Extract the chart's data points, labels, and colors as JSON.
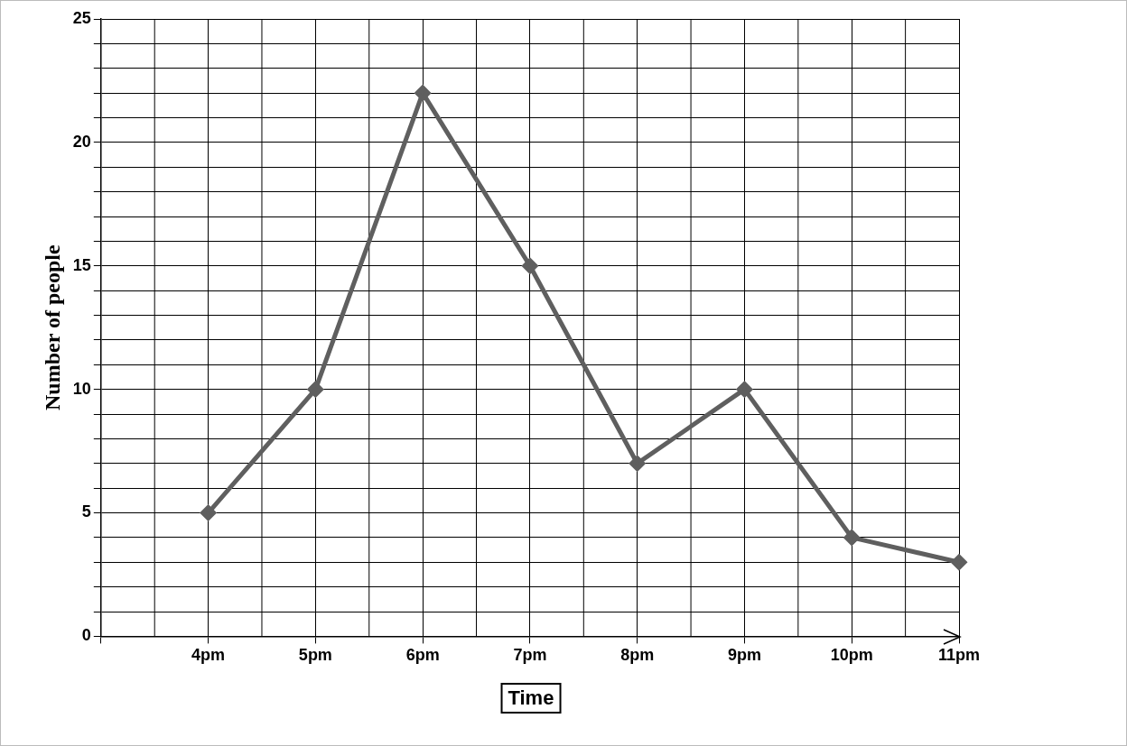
{
  "chart_data": {
    "type": "line",
    "xlabel": "Time",
    "ylabel": "Number of people",
    "categories": [
      null,
      "4pm",
      "5pm",
      "6pm",
      "7pm",
      "8pm",
      "9pm",
      "10pm",
      "11pm"
    ],
    "series": [
      {
        "color": "#5f5f5f",
        "values": [
          null,
          5,
          10,
          22,
          15,
          7,
          10,
          4,
          3
        ]
      }
    ],
    "ylim": [
      0,
      25
    ],
    "yticks": [
      0,
      {
        "value": 1,
        "label": null
      },
      {
        "value": 2,
        "label": null
      },
      {
        "value": 3,
        "label": null
      },
      {
        "value": 4,
        "label": null
      },
      5,
      {
        "value": 6,
        "label": null
      },
      {
        "value": 7,
        "label": null
      },
      {
        "value": 8,
        "label": null
      },
      {
        "value": 9,
        "label": null
      },
      10,
      {
        "value": 11,
        "label": null
      },
      {
        "value": 12,
        "label": null
      },
      {
        "value": 13,
        "label": null
      },
      {
        "value": 14,
        "label": null
      },
      15,
      {
        "value": 16,
        "label": null
      },
      {
        "value": 17,
        "label": null
      },
      {
        "value": 18,
        "label": null
      },
      {
        "value": 19,
        "label": null
      },
      20,
      {
        "value": 21,
        "label": null
      },
      {
        "value": 22,
        "label": null
      },
      {
        "value": 23,
        "label": null
      },
      {
        "value": 24,
        "label": null
      },
      25
    ],
    "grid": true,
    "marker": "diamond",
    "line_style": "solid"
  }
}
